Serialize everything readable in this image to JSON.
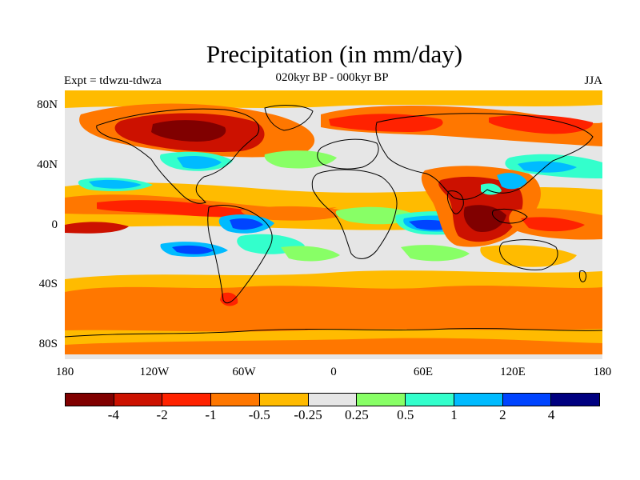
{
  "figure": {
    "title": "Precipitation (in mm/day)",
    "subtitle_center": "020kyr BP - 000kyr BP",
    "subtitle_left": "Expt = tdwzu-tdwza",
    "subtitle_right": "JJA"
  },
  "map": {
    "projection": "cylindrical-equidistant",
    "lon_range": [
      -180,
      180
    ],
    "lat_range": [
      -90,
      90
    ],
    "background_color": "#e6e6e6",
    "coastlines": "black"
  },
  "axes": {
    "lat_ticks": [
      {
        "label": "80N",
        "lat": 80
      },
      {
        "label": "40N",
        "lat": 40
      },
      {
        "label": "0",
        "lat": 0
      },
      {
        "label": "40S",
        "lat": -40
      },
      {
        "label": "80S",
        "lat": -80
      }
    ],
    "lon_ticks": [
      {
        "label": "180",
        "lon": -180
      },
      {
        "label": "120W",
        "lon": -120
      },
      {
        "label": "60W",
        "lon": -60
      },
      {
        "label": "0",
        "lon": 0
      },
      {
        "label": "60E",
        "lon": 60
      },
      {
        "label": "120E",
        "lon": 120
      },
      {
        "label": "180",
        "lon": 180
      }
    ]
  },
  "colorbar": {
    "colors": [
      "#800000",
      "#cc1100",
      "#ff2200",
      "#ff7700",
      "#ffbb00",
      "#e6e6e6",
      "#88ff66",
      "#33ffcc",
      "#00bbff",
      "#0044ff",
      "#000080"
    ],
    "labels": [
      "-4",
      "-2",
      "-1",
      "-0.5",
      "-0.25",
      "0.25",
      "0.5",
      "1",
      "2",
      "4"
    ]
  }
}
